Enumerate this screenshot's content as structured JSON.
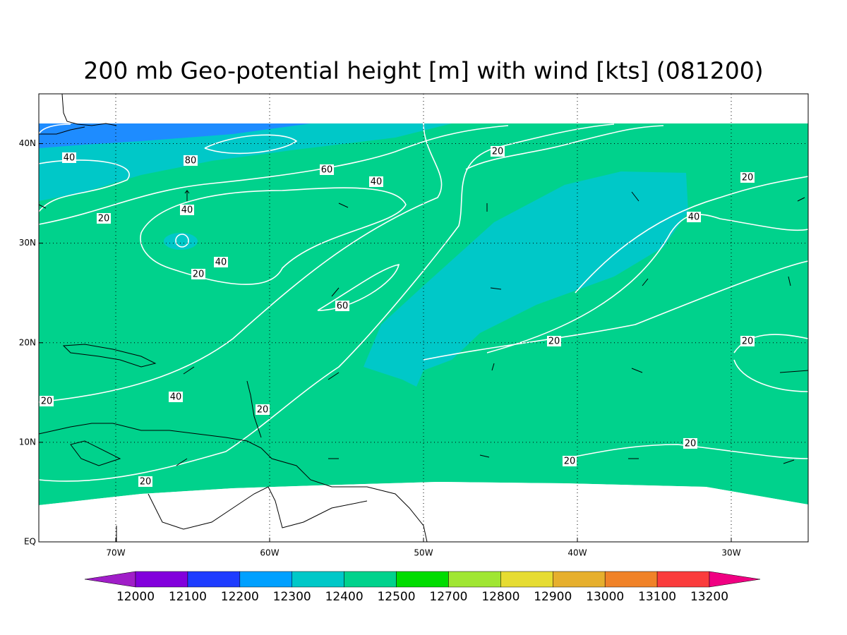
{
  "title": "200 mb Geo-potential height [m] with wind [kts] (081200)",
  "map": {
    "xlim": [
      -75,
      -25
    ],
    "ylim": [
      0,
      45
    ],
    "xticks": [
      {
        "value": -70,
        "label": "70W"
      },
      {
        "value": -60,
        "label": "60W"
      },
      {
        "value": -50,
        "label": "50W"
      },
      {
        "value": -40,
        "label": "40W"
      },
      {
        "value": -30,
        "label": "30W"
      }
    ],
    "yticks": [
      {
        "value": 0,
        "label": "EQ"
      },
      {
        "value": 10,
        "label": "10N"
      },
      {
        "value": 20,
        "label": "20N"
      },
      {
        "value": 30,
        "label": "30N"
      },
      {
        "value": 40,
        "label": "40N"
      }
    ],
    "grid": true,
    "contour_labels": [
      40,
      80,
      60,
      40,
      20,
      20,
      20,
      40,
      40,
      40,
      20,
      60,
      20,
      20,
      20,
      40,
      20,
      20,
      20,
      20
    ]
  },
  "colorbar": {
    "levels": [
      12000,
      12100,
      12200,
      12300,
      12400,
      12500,
      12700,
      12800,
      12900,
      13000,
      13100,
      13200
    ],
    "colors": [
      "#a01ec8",
      "#8200dc",
      "#1e3cff",
      "#00a0ff",
      "#00c8c8",
      "#00d28c",
      "#00dc00",
      "#a0e632",
      "#e6dc32",
      "#e6af2d",
      "#f08228",
      "#fa3c3c",
      "#f00082"
    ]
  }
}
